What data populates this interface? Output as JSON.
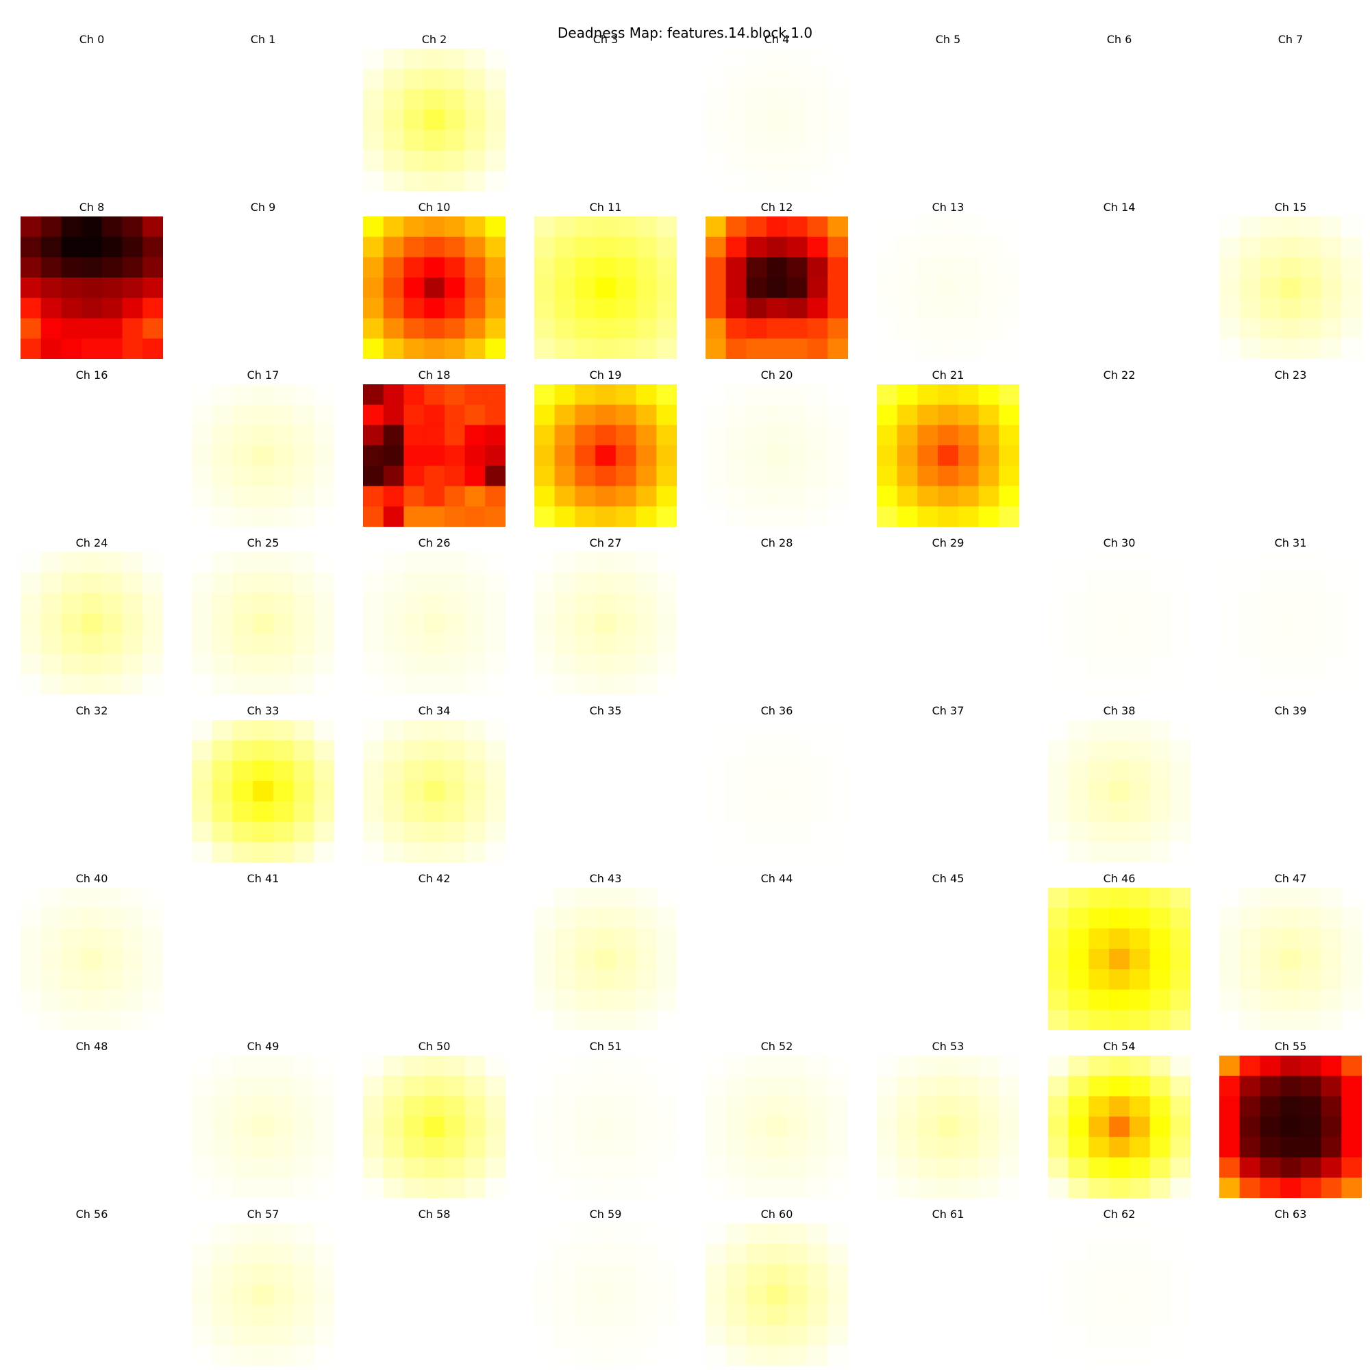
{
  "chart_data": {
    "type": "heatmap",
    "title": "Deadness Map: features.14.block.1.0",
    "colormap": "hot_r",
    "value_range": [
      0,
      1
    ],
    "grid_size": 7,
    "panels": [
      {
        "label": "Ch 0",
        "peak": 0.0,
        "shape": "blank"
      },
      {
        "label": "Ch 1",
        "peak": 0.0,
        "shape": "blank"
      },
      {
        "label": "Ch 2",
        "peak": 0.18,
        "shape": "blob"
      },
      {
        "label": "Ch 3",
        "peak": 0.0,
        "shape": "blank"
      },
      {
        "label": "Ch 4",
        "peak": 0.02,
        "shape": "blob"
      },
      {
        "label": "Ch 5",
        "peak": 0.0,
        "shape": "blank"
      },
      {
        "label": "Ch 6",
        "peak": 0.0,
        "shape": "blank"
      },
      {
        "label": "Ch 7",
        "peak": 0.0,
        "shape": "blank"
      },
      {
        "label": "Ch 8",
        "peak": 1.0,
        "shape": "explicit",
        "values": [
          [
            0.82,
            0.88,
            0.95,
            0.97,
            0.92,
            0.88,
            0.78
          ],
          [
            0.88,
            0.93,
            0.98,
            0.98,
            0.96,
            0.92,
            0.85
          ],
          [
            0.82,
            0.88,
            0.92,
            0.93,
            0.91,
            0.88,
            0.82
          ],
          [
            0.72,
            0.76,
            0.78,
            0.79,
            0.78,
            0.76,
            0.72
          ],
          [
            0.6,
            0.7,
            0.74,
            0.76,
            0.74,
            0.68,
            0.6
          ],
          [
            0.52,
            0.64,
            0.66,
            0.66,
            0.66,
            0.58,
            0.52
          ],
          [
            0.58,
            0.66,
            0.64,
            0.62,
            0.62,
            0.58,
            0.6
          ]
        ]
      },
      {
        "label": "Ch 9",
        "peak": 0.0,
        "shape": "blank"
      },
      {
        "label": "Ch 10",
        "peak": 0.75,
        "shape": "ring"
      },
      {
        "label": "Ch 11",
        "peak": 0.25,
        "shape": "ring"
      },
      {
        "label": "Ch 12",
        "peak": 0.97,
        "shape": "explicit",
        "values": [
          [
            0.35,
            0.5,
            0.55,
            0.6,
            0.58,
            0.52,
            0.42
          ],
          [
            0.45,
            0.6,
            0.72,
            0.75,
            0.72,
            0.62,
            0.5
          ],
          [
            0.52,
            0.72,
            0.88,
            0.92,
            0.88,
            0.75,
            0.56
          ],
          [
            0.52,
            0.72,
            0.9,
            0.93,
            0.9,
            0.74,
            0.56
          ],
          [
            0.52,
            0.7,
            0.78,
            0.74,
            0.76,
            0.68,
            0.56
          ],
          [
            0.42,
            0.56,
            0.58,
            0.56,
            0.56,
            0.54,
            0.48
          ],
          [
            0.4,
            0.5,
            0.48,
            0.48,
            0.48,
            0.5,
            0.44
          ]
        ]
      },
      {
        "label": "Ch 13",
        "peak": 0.02,
        "shape": "blob"
      },
      {
        "label": "Ch 14",
        "peak": 0.0,
        "shape": "blank"
      },
      {
        "label": "Ch 15",
        "peak": 0.12,
        "shape": "blob"
      },
      {
        "label": "Ch 16",
        "peak": 0.0,
        "shape": "blank"
      },
      {
        "label": "Ch 17",
        "peak": 0.07,
        "shape": "blob"
      },
      {
        "label": "Ch 18",
        "peak": 0.95,
        "shape": "explicit",
        "values": [
          [
            0.8,
            0.7,
            0.6,
            0.55,
            0.52,
            0.55,
            0.55
          ],
          [
            0.62,
            0.7,
            0.58,
            0.6,
            0.55,
            0.52,
            0.55
          ],
          [
            0.76,
            0.88,
            0.6,
            0.6,
            0.55,
            0.64,
            0.66
          ],
          [
            0.88,
            0.9,
            0.62,
            0.62,
            0.6,
            0.66,
            0.7
          ],
          [
            0.9,
            0.82,
            0.6,
            0.56,
            0.58,
            0.64,
            0.82
          ],
          [
            0.55,
            0.6,
            0.52,
            0.56,
            0.5,
            0.45,
            0.5
          ],
          [
            0.52,
            0.68,
            0.45,
            0.45,
            0.47,
            0.48,
            0.47
          ]
        ]
      },
      {
        "label": "Ch 19",
        "peak": 0.62,
        "shape": "ring"
      },
      {
        "label": "Ch 20",
        "peak": 0.03,
        "shape": "blob"
      },
      {
        "label": "Ch 21",
        "peak": 0.55,
        "shape": "ring"
      },
      {
        "label": "Ch 22",
        "peak": 0.0,
        "shape": "blank"
      },
      {
        "label": "Ch 23",
        "peak": 0.0,
        "shape": "blank"
      },
      {
        "label": "Ch 24",
        "peak": 0.12,
        "shape": "blob"
      },
      {
        "label": "Ch 25",
        "peak": 0.08,
        "shape": "blob"
      },
      {
        "label": "Ch 26",
        "peak": 0.05,
        "shape": "blob"
      },
      {
        "label": "Ch 27",
        "peak": 0.07,
        "shape": "blob"
      },
      {
        "label": "Ch 28",
        "peak": 0.0,
        "shape": "blank"
      },
      {
        "label": "Ch 29",
        "peak": 0.0,
        "shape": "blank"
      },
      {
        "label": "Ch 30",
        "peak": 0.01,
        "shape": "blob"
      },
      {
        "label": "Ch 31",
        "peak": 0.01,
        "shape": "blob"
      },
      {
        "label": "Ch 32",
        "peak": 0.0,
        "shape": "blank"
      },
      {
        "label": "Ch 33",
        "peak": 0.28,
        "shape": "blob"
      },
      {
        "label": "Ch 34",
        "peak": 0.14,
        "shape": "blob"
      },
      {
        "label": "Ch 35",
        "peak": 0.0,
        "shape": "blank"
      },
      {
        "label": "Ch 36",
        "peak": 0.01,
        "shape": "blob"
      },
      {
        "label": "Ch 37",
        "peak": 0.0,
        "shape": "blank"
      },
      {
        "label": "Ch 38",
        "peak": 0.08,
        "shape": "blob"
      },
      {
        "label": "Ch 39",
        "peak": 0.0,
        "shape": "blank"
      },
      {
        "label": "Ch 40",
        "peak": 0.06,
        "shape": "blob"
      },
      {
        "label": "Ch 41",
        "peak": 0.0,
        "shape": "blank"
      },
      {
        "label": "Ch 42",
        "peak": 0.0,
        "shape": "blank"
      },
      {
        "label": "Ch 43",
        "peak": 0.08,
        "shape": "blob"
      },
      {
        "label": "Ch 44",
        "peak": 0.0,
        "shape": "blank"
      },
      {
        "label": "Ch 45",
        "peak": 0.0,
        "shape": "blank"
      },
      {
        "label": "Ch 46",
        "peak": 0.37,
        "shape": "ring"
      },
      {
        "label": "Ch 47",
        "peak": 0.08,
        "shape": "blob"
      },
      {
        "label": "Ch 48",
        "peak": 0.0,
        "shape": "blank"
      },
      {
        "label": "Ch 49",
        "peak": 0.05,
        "shape": "blob"
      },
      {
        "label": "Ch 50",
        "peak": 0.2,
        "shape": "blob"
      },
      {
        "label": "Ch 51",
        "peak": 0.02,
        "shape": "blob"
      },
      {
        "label": "Ch 52",
        "peak": 0.05,
        "shape": "blob"
      },
      {
        "label": "Ch 53",
        "peak": 0.09,
        "shape": "blob"
      },
      {
        "label": "Ch 54",
        "peak": 0.45,
        "shape": "blob"
      },
      {
        "label": "Ch 55",
        "peak": 0.97,
        "shape": "explicit",
        "values": [
          [
            0.42,
            0.6,
            0.66,
            0.72,
            0.7,
            0.64,
            0.52
          ],
          [
            0.62,
            0.78,
            0.84,
            0.88,
            0.86,
            0.78,
            0.64
          ],
          [
            0.64,
            0.84,
            0.9,
            0.93,
            0.92,
            0.84,
            0.64
          ],
          [
            0.64,
            0.86,
            0.92,
            0.94,
            0.93,
            0.86,
            0.64
          ],
          [
            0.64,
            0.84,
            0.9,
            0.92,
            0.92,
            0.84,
            0.64
          ],
          [
            0.52,
            0.72,
            0.8,
            0.84,
            0.8,
            0.72,
            0.58
          ],
          [
            0.38,
            0.52,
            0.58,
            0.62,
            0.58,
            0.52,
            0.44
          ]
        ]
      },
      {
        "label": "Ch 56",
        "peak": 0.0,
        "shape": "blank"
      },
      {
        "label": "Ch 57",
        "peak": 0.07,
        "shape": "blob"
      },
      {
        "label": "Ch 58",
        "peak": 0.0,
        "shape": "blank"
      },
      {
        "label": "Ch 59",
        "peak": 0.02,
        "shape": "blob"
      },
      {
        "label": "Ch 60",
        "peak": 0.12,
        "shape": "blob"
      },
      {
        "label": "Ch 61",
        "peak": 0.0,
        "shape": "blank"
      },
      {
        "label": "Ch 62",
        "peak": 0.01,
        "shape": "blob"
      },
      {
        "label": "Ch 63",
        "peak": 0.0,
        "shape": "blank"
      }
    ]
  }
}
